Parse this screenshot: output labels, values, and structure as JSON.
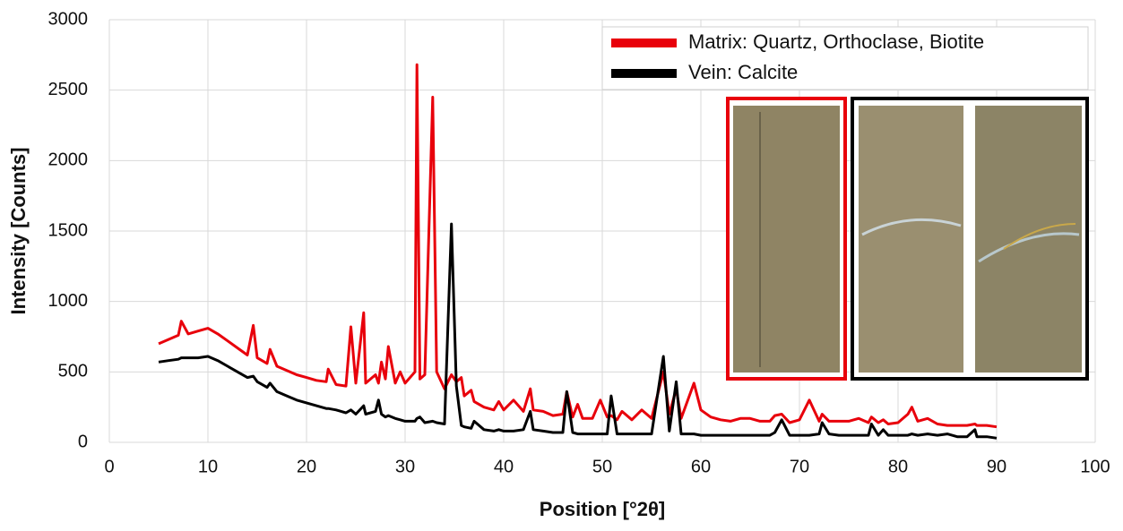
{
  "chart_data": {
    "type": "line",
    "x_label": "Position [°2θ]",
    "y_label": "Intensity [Counts]",
    "xlim": [
      0,
      100
    ],
    "ylim": [
      0,
      3000
    ],
    "xticks": [
      0,
      10,
      20,
      30,
      40,
      50,
      60,
      70,
      80,
      90,
      100
    ],
    "yticks": [
      0,
      500,
      1000,
      1500,
      2000,
      2500,
      3000
    ],
    "grid": true,
    "legend": "upper right",
    "x": [
      5,
      6,
      7,
      7.3,
      8,
      9,
      10,
      11,
      12,
      13,
      14,
      14.6,
      15,
      16,
      16.3,
      17,
      18,
      19,
      20,
      21,
      22,
      22.2,
      23,
      24,
      24.5,
      25,
      25.8,
      26,
      27,
      27.3,
      27.6,
      28,
      28.3,
      29,
      29.5,
      30,
      31,
      31.2,
      31.5,
      32,
      32.8,
      33.2,
      34,
      34.7,
      35.2,
      35.7,
      36,
      36.7,
      37,
      38,
      39,
      39.5,
      40,
      41,
      42,
      42.7,
      43,
      44,
      45,
      46,
      46.4,
      47,
      47.5,
      48,
      49,
      49.8,
      50.5,
      50.9,
      51.5,
      52,
      53,
      54,
      55,
      56.2,
      56.8,
      57.5,
      58,
      59.3,
      60,
      61,
      62,
      63,
      64,
      65,
      66,
      67,
      67.5,
      68.2,
      69,
      70,
      71,
      72,
      72.3,
      73,
      74,
      75,
      76,
      77,
      77.3,
      78,
      78.5,
      79,
      80,
      81,
      81.4,
      82,
      83,
      84,
      85,
      86,
      87,
      87.8,
      88,
      89,
      90
    ],
    "series": [
      {
        "name": "Matrix: Quartz, Orthoclase, Biotite",
        "color": "#e8000b",
        "values": [
          700,
          730,
          760,
          860,
          770,
          790,
          810,
          770,
          720,
          670,
          620,
          830,
          600,
          560,
          660,
          540,
          510,
          480,
          460,
          440,
          430,
          520,
          410,
          400,
          820,
          420,
          920,
          420,
          480,
          420,
          570,
          450,
          680,
          420,
          500,
          420,
          500,
          2680,
          450,
          480,
          2450,
          500,
          380,
          480,
          430,
          460,
          330,
          370,
          290,
          250,
          230,
          290,
          230,
          300,
          220,
          380,
          230,
          220,
          190,
          200,
          360,
          180,
          270,
          170,
          170,
          300,
          180,
          190,
          160,
          220,
          160,
          230,
          170,
          500,
          200,
          380,
          170,
          420,
          230,
          180,
          160,
          150,
          170,
          170,
          150,
          150,
          190,
          200,
          140,
          160,
          300,
          150,
          200,
          150,
          150,
          150,
          170,
          140,
          180,
          140,
          160,
          130,
          140,
          200,
          250,
          150,
          170,
          130,
          120,
          120,
          120,
          130,
          120,
          120,
          110
        ]
      },
      {
        "name": "Vein: Calcite",
        "color": "#000000",
        "values": [
          570,
          580,
          590,
          600,
          600,
          600,
          610,
          580,
          540,
          500,
          460,
          470,
          430,
          390,
          420,
          360,
          330,
          300,
          280,
          260,
          240,
          240,
          230,
          210,
          230,
          200,
          260,
          200,
          220,
          300,
          200,
          180,
          190,
          170,
          160,
          150,
          150,
          170,
          180,
          140,
          150,
          140,
          130,
          1550,
          400,
          120,
          110,
          100,
          150,
          90,
          80,
          90,
          80,
          80,
          90,
          220,
          90,
          80,
          70,
          70,
          360,
          70,
          60,
          60,
          60,
          60,
          60,
          330,
          60,
          60,
          60,
          60,
          60,
          610,
          80,
          430,
          60,
          60,
          50,
          50,
          50,
          50,
          50,
          50,
          50,
          50,
          70,
          160,
          50,
          50,
          50,
          60,
          140,
          60,
          50,
          50,
          50,
          50,
          130,
          50,
          90,
          50,
          50,
          50,
          60,
          50,
          60,
          50,
          60,
          40,
          40,
          90,
          40,
          40,
          30
        ]
      }
    ]
  }
}
